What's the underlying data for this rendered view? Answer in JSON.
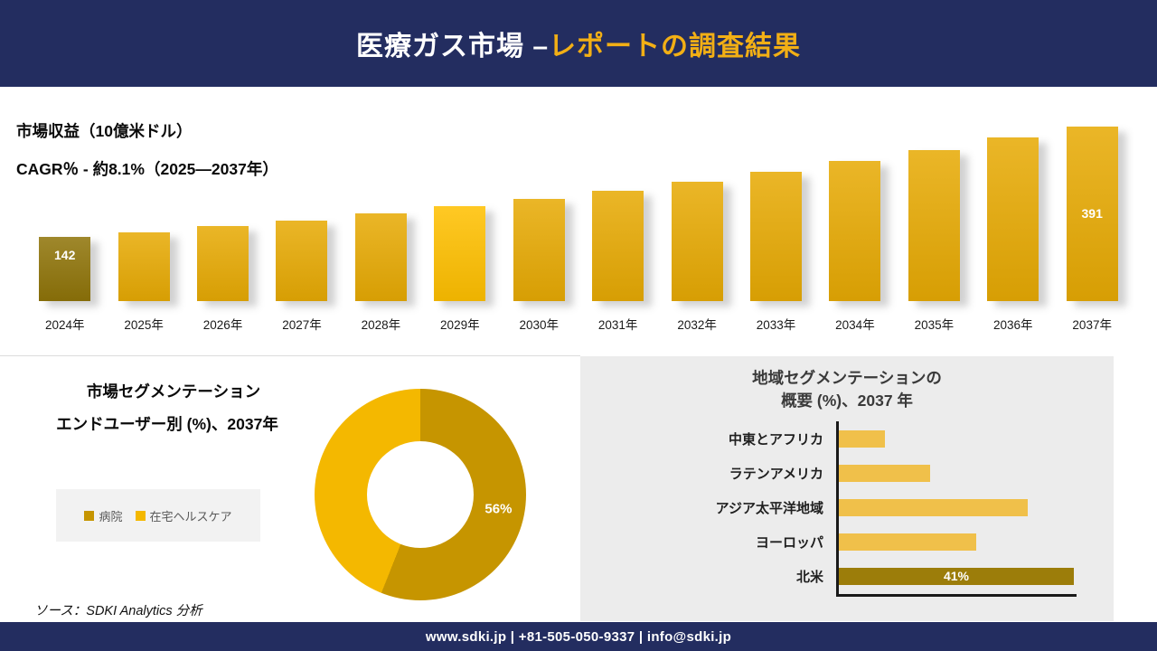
{
  "header": {
    "title_main": "医療ガス市場 –",
    "title_accent": "レポートの調査結果"
  },
  "revenue": {
    "label": "市場収益（10億米ドル）",
    "cagr": "CAGR％ - 約8.1%（2025―2037年）"
  },
  "segmentation": {
    "title": "市場セグメンテーション",
    "subtitle": "エンドユーザー別 (%)、2037年",
    "legend": [
      {
        "label": "病院",
        "color": "#C69500"
      },
      {
        "label": "在宅ヘルスケア",
        "color": "#F4B800"
      }
    ],
    "donut_label": "56%"
  },
  "region": {
    "title_line1": "地域セグメンテーションの",
    "title_line2": "概要 (%)、2037 年"
  },
  "source": "ソース：SDKI Analytics 分析",
  "footer": "www.sdki.jp | +81-505-050-9337 | info@sdki.jp",
  "colors": {
    "banner_navy": "#232D60",
    "accent_gold": "#F2AF15",
    "bar_gold": "#E7AA04",
    "bar_dark_gold": "#8F7409",
    "bar_bright_gold": "#FFC000",
    "panel_gray": "#ECECEC"
  },
  "chart_data": [
    {
      "type": "bar",
      "title": "市場収益（10億米ドル）",
      "subtitle": "CAGR％ - 約8.1%（2025―2037年）",
      "categories": [
        "2024年",
        "2025年",
        "2026年",
        "2027年",
        "2028年",
        "2029年",
        "2030年",
        "2031年",
        "2032年",
        "2033年",
        "2034年",
        "2035年",
        "2036年",
        "2037年"
      ],
      "values": [
        142,
        153,
        166,
        179,
        194,
        210,
        227,
        245,
        265,
        287,
        310,
        335,
        362,
        391
      ],
      "ylim": [
        0,
        391
      ],
      "legend_position": "none",
      "grid": false,
      "color": "#E7AA04",
      "colors": {
        "0": "#8F7409",
        "5": "#FFC000"
      },
      "bar_labels": {
        "0": {
          "text": "142",
          "top": 12
        },
        "13": {
          "text": "391",
          "top": 88
        }
      }
    },
    {
      "type": "pie",
      "donut": true,
      "title": "市場セグメンテーション エンドユーザー別 (%)、2037年",
      "labels": [
        "病院",
        "在宅ヘルスケア"
      ],
      "values": [
        56,
        44
      ],
      "colors": [
        "#C69500",
        "#F4B800"
      ],
      "data_label": "56%",
      "legend_position": "left"
    },
    {
      "type": "bar-horizontal",
      "title": "地域セグメンテーションの概要 (%)、2037 年",
      "categories": [
        "中東とアフリカ",
        "ラテンアメリカ",
        "アジア太平洋地域",
        "ヨーロッパ",
        "北米"
      ],
      "values": [
        8,
        16,
        33,
        24,
        41
      ],
      "xlim": [
        0,
        41
      ],
      "grid": false,
      "color": "#F0C04A",
      "colors": {
        "4": "#9C7D0A"
      },
      "bar_labels": {
        "4": "41%"
      }
    }
  ]
}
